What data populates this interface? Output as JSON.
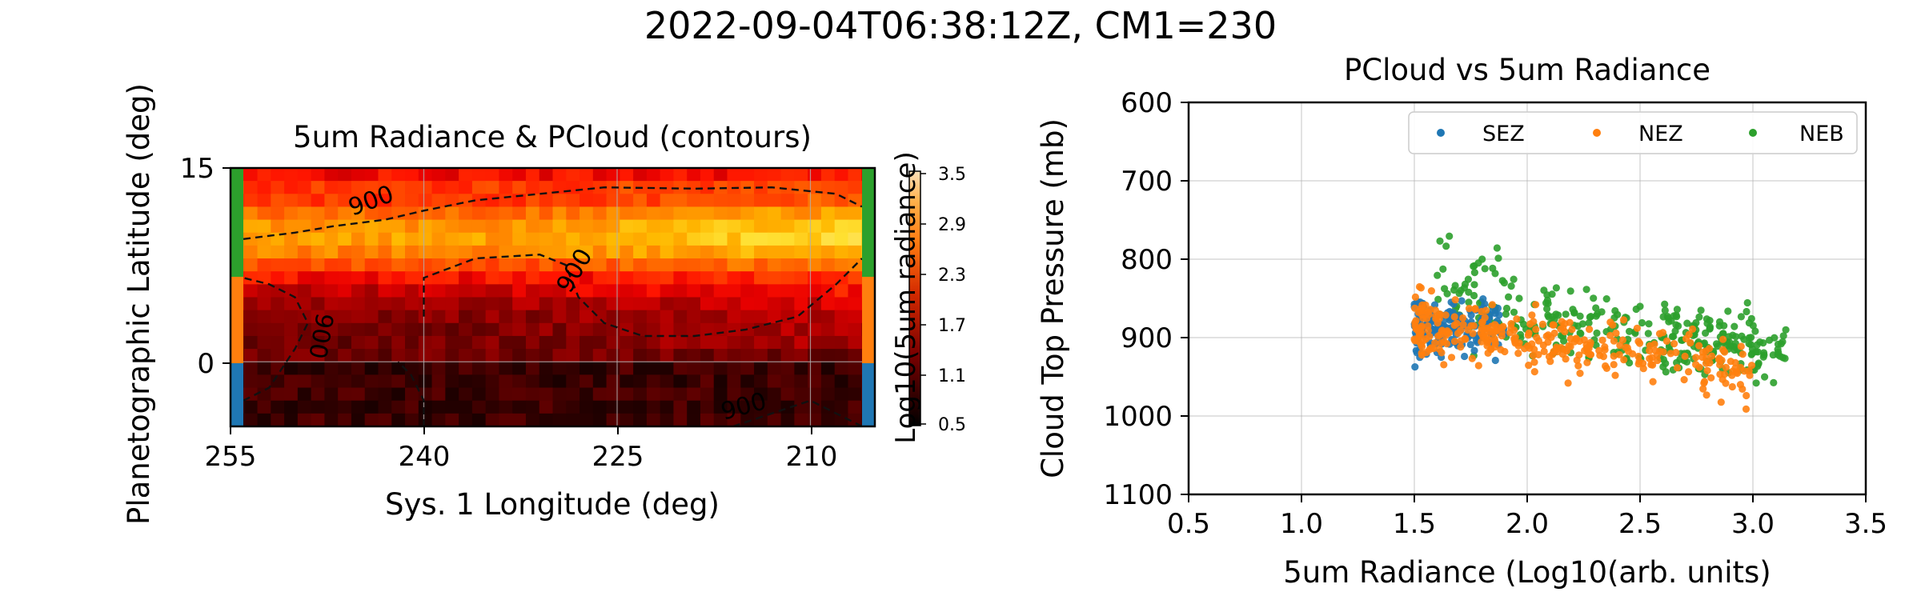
{
  "suptitle": "2022-09-04T06:38:12Z, CM1=230",
  "chart_data": [
    {
      "type": "heatmap",
      "title": "5um Radiance & PCloud (contours)",
      "xlabel": "Sys. 1 Longitude (deg)",
      "ylabel": "Planetographic Latitude (deg)",
      "xlim": [
        255,
        205
      ],
      "ylim": [
        -5,
        15
      ],
      "xticks": [
        "255",
        "240",
        "225",
        "210"
      ],
      "yticks": [
        "15",
        "0"
      ],
      "colorbar": {
        "label": "Log10(5um radiance)",
        "ticks": [
          "3.5",
          "2.9",
          "2.3",
          "1.7",
          "1.1",
          "0.5"
        ],
        "range": [
          0.5,
          3.5
        ],
        "colormap": "gist_heat"
      },
      "contour_label": "900",
      "contour_labels": [
        "900",
        "900",
        "900",
        "900"
      ],
      "latitude_bands": [
        {
          "zone": "NEB",
          "lat_range": [
            8,
            15
          ],
          "color": "#2ca02c"
        },
        {
          "zone": "NEZ",
          "lat_range": [
            0,
            7
          ],
          "color": "#ff7f0e"
        },
        {
          "zone": "SEZ",
          "lat_range": [
            -5,
            0
          ],
          "color": "#1f77b4"
        }
      ]
    },
    {
      "type": "scatter",
      "title": "PCloud vs 5um Radiance",
      "xlabel": "5um Radiance (Log10(arb. units)",
      "ylabel": "Cloud Top Pressure (mb)",
      "xlim": [
        0.5,
        3.5
      ],
      "ylim": [
        1100,
        600
      ],
      "xticks": [
        "0.5",
        "1.0",
        "1.5",
        "2.0",
        "2.5",
        "3.0",
        "3.5"
      ],
      "yticks": [
        "600",
        "700",
        "800",
        "900",
        "1000",
        "1100"
      ],
      "grid": true,
      "legend_position": "top-right",
      "series": [
        {
          "name": "SEZ",
          "color": "#1f77b4",
          "x_range": [
            1.5,
            1.9
          ],
          "y_mean": 885,
          "y_spread": 18,
          "count": 170
        },
        {
          "name": "NEZ",
          "color": "#ff7f0e",
          "x_range": [
            1.5,
            3.0
          ],
          "y_start": 880,
          "y_end": 945,
          "y_spread": 18,
          "count": 330
        },
        {
          "name": "NEB",
          "color": "#2ca02c",
          "x_range": [
            1.6,
            3.15
          ],
          "y_start": 860,
          "y_end": 925,
          "y_spread": 22,
          "count": 330
        }
      ]
    }
  ]
}
